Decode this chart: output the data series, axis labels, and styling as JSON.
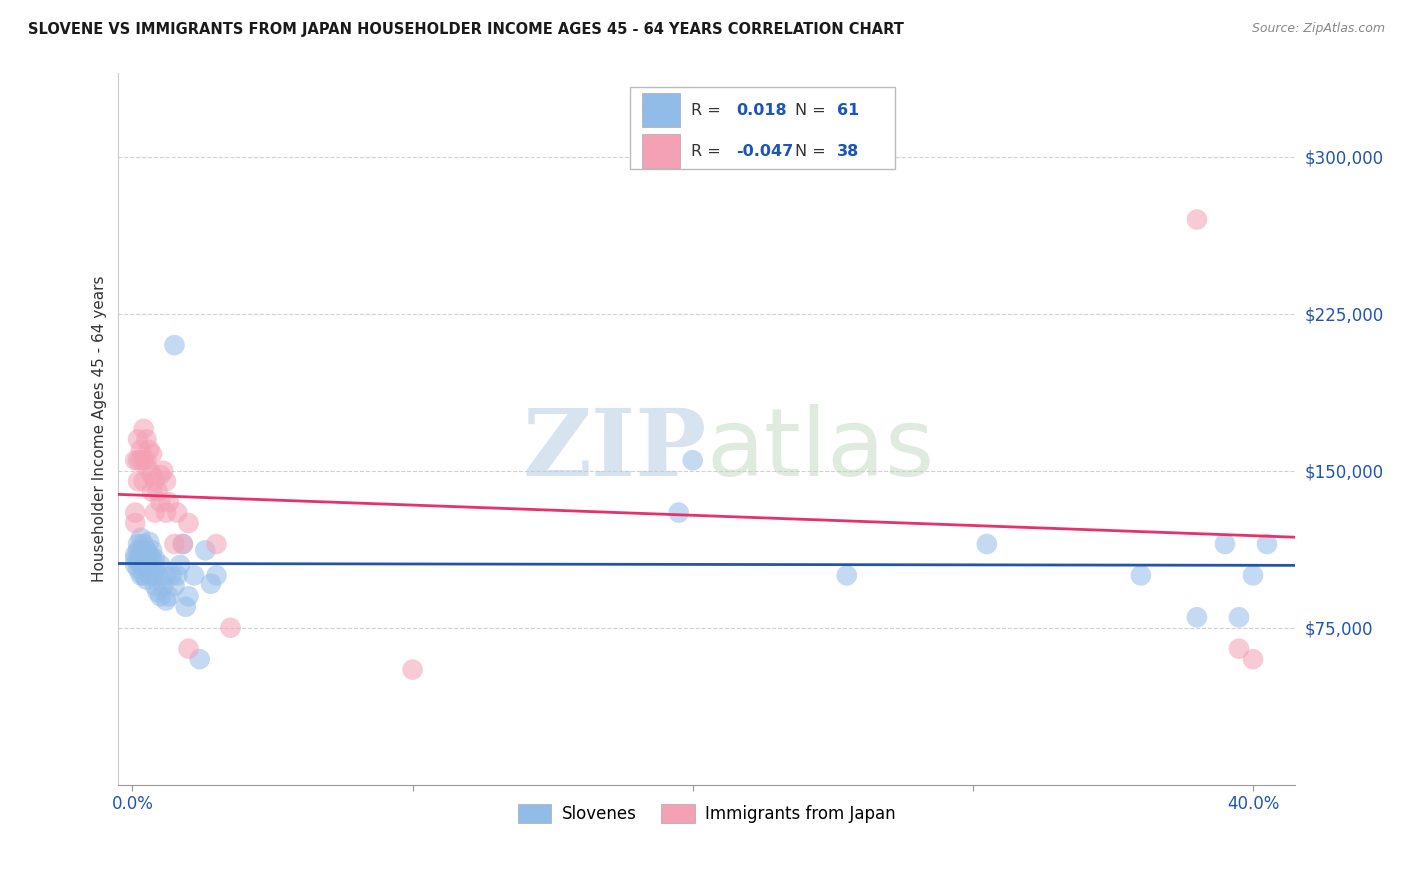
{
  "title": "SLOVENE VS IMMIGRANTS FROM JAPAN HOUSEHOLDER INCOME AGES 45 - 64 YEARS CORRELATION CHART",
  "source": "Source: ZipAtlas.com",
  "ylabel": "Householder Income Ages 45 - 64 years",
  "xlabel_ticks": [
    "0.0%",
    "",
    "",
    "",
    "40.0%"
  ],
  "xlabel_vals": [
    0.0,
    0.1,
    0.2,
    0.3,
    0.4
  ],
  "ylabel_ticks": [
    "$75,000",
    "$150,000",
    "$225,000",
    "$300,000"
  ],
  "ylabel_vals": [
    75000,
    150000,
    225000,
    300000
  ],
  "xlim": [
    -0.005,
    0.415
  ],
  "ylim": [
    0,
    340000
  ],
  "blue_color": "#92bce8",
  "pink_color": "#f4a0b5",
  "blue_line_color": "#2255aa",
  "pink_line_color": "#e8306a",
  "legend_label_blue": "Slovenes",
  "legend_label_pink": "Immigrants from Japan",
  "blue_scatter_x": [
    0.001,
    0.001,
    0.001,
    0.002,
    0.002,
    0.002,
    0.002,
    0.003,
    0.003,
    0.003,
    0.003,
    0.003,
    0.004,
    0.004,
    0.004,
    0.004,
    0.005,
    0.005,
    0.005,
    0.005,
    0.006,
    0.006,
    0.006,
    0.006,
    0.007,
    0.007,
    0.007,
    0.008,
    0.008,
    0.008,
    0.009,
    0.009,
    0.01,
    0.01,
    0.011,
    0.012,
    0.012,
    0.013,
    0.014,
    0.015,
    0.016,
    0.017,
    0.018,
    0.019,
    0.02,
    0.022,
    0.024,
    0.026,
    0.028,
    0.03,
    0.015,
    0.195,
    0.2,
    0.255,
    0.305,
    0.36,
    0.38,
    0.39,
    0.395,
    0.4,
    0.405
  ],
  "blue_scatter_y": [
    110000,
    108000,
    105000,
    115000,
    112000,
    108000,
    103000,
    118000,
    112000,
    108000,
    105000,
    100000,
    115000,
    110000,
    107000,
    100000,
    112000,
    110000,
    107000,
    98000,
    116000,
    110000,
    105000,
    100000,
    112000,
    108000,
    100000,
    108000,
    103000,
    95000,
    100000,
    92000,
    105000,
    90000,
    95000,
    100000,
    88000,
    90000,
    100000,
    95000,
    100000,
    105000,
    115000,
    85000,
    90000,
    100000,
    60000,
    112000,
    96000,
    100000,
    210000,
    130000,
    155000,
    100000,
    115000,
    100000,
    80000,
    115000,
    80000,
    100000,
    115000
  ],
  "pink_scatter_x": [
    0.001,
    0.001,
    0.001,
    0.002,
    0.002,
    0.002,
    0.003,
    0.003,
    0.004,
    0.004,
    0.004,
    0.005,
    0.005,
    0.006,
    0.006,
    0.007,
    0.007,
    0.007,
    0.008,
    0.008,
    0.009,
    0.01,
    0.01,
    0.011,
    0.012,
    0.012,
    0.013,
    0.015,
    0.016,
    0.018,
    0.02,
    0.03,
    0.035,
    0.02,
    0.38,
    0.395,
    0.4,
    0.1
  ],
  "pink_scatter_y": [
    130000,
    155000,
    125000,
    165000,
    155000,
    145000,
    160000,
    155000,
    170000,
    155000,
    145000,
    165000,
    155000,
    160000,
    150000,
    158000,
    148000,
    140000,
    145000,
    130000,
    140000,
    148000,
    135000,
    150000,
    145000,
    130000,
    135000,
    115000,
    130000,
    115000,
    125000,
    115000,
    75000,
    65000,
    270000,
    65000,
    60000,
    55000
  ]
}
